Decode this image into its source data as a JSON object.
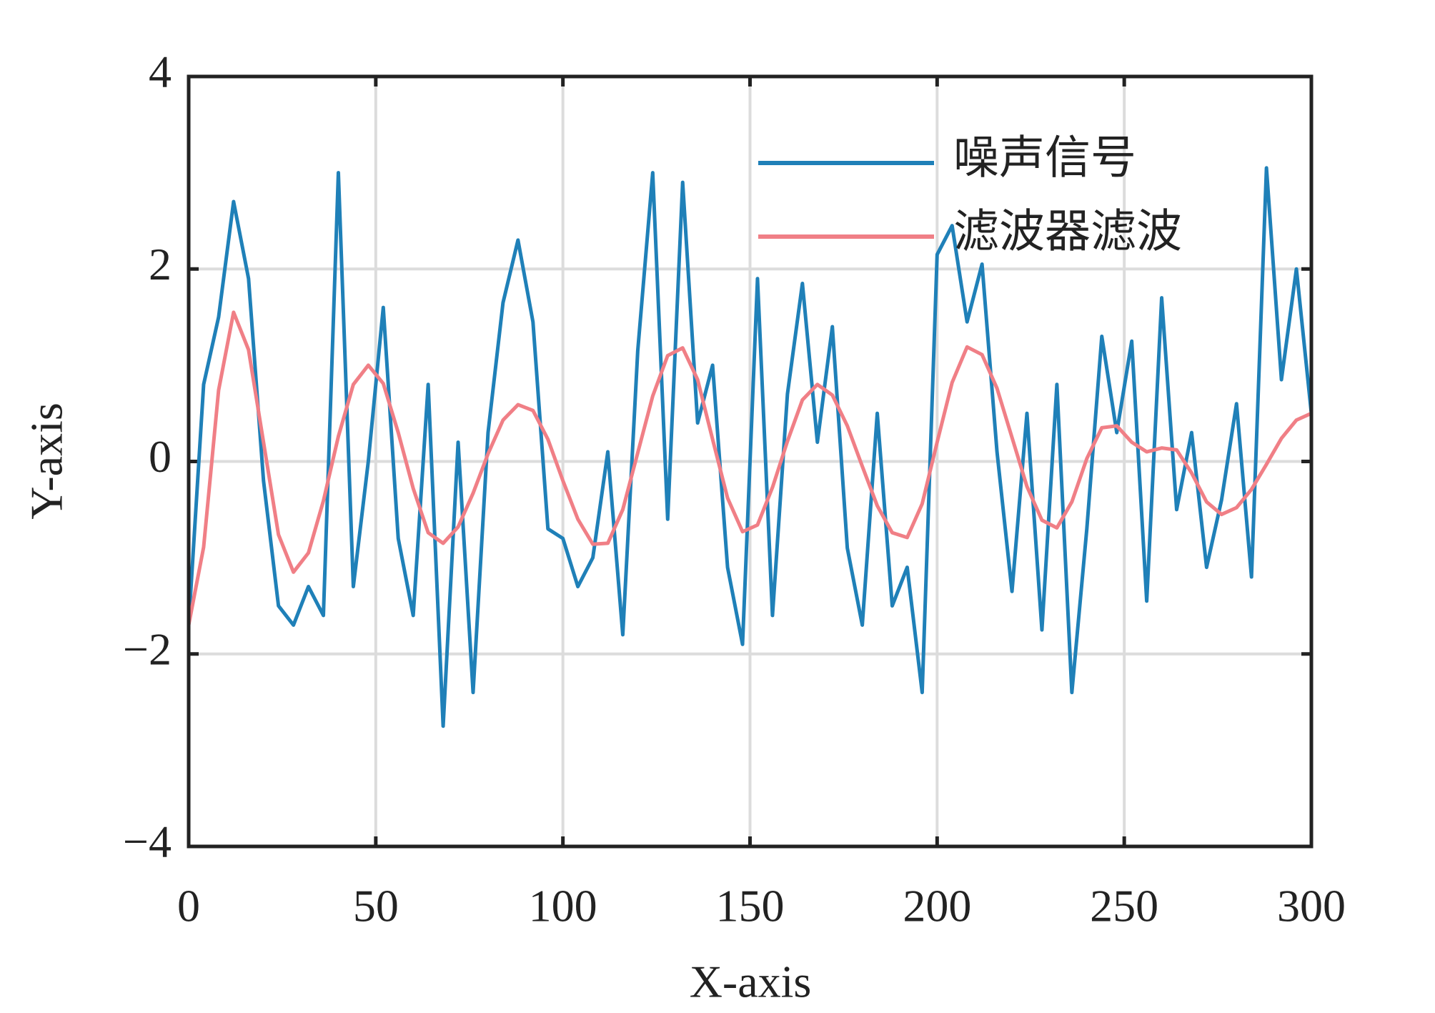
{
  "chart_data": {
    "type": "line",
    "xlabel": "X-axis",
    "ylabel": "Y-axis",
    "x": [
      0,
      4,
      8,
      12,
      16,
      20,
      24,
      28,
      32,
      36,
      40,
      44,
      48,
      52,
      56,
      60,
      64,
      68,
      72,
      76,
      80,
      84,
      88,
      92,
      96,
      100,
      104,
      108,
      112,
      116,
      120,
      124,
      128,
      132,
      136,
      140,
      144,
      148,
      152,
      156,
      160,
      164,
      168,
      172,
      176,
      180,
      184,
      188,
      192,
      196,
      200,
      204,
      208,
      212,
      216,
      220,
      224,
      228,
      232,
      236,
      240,
      244,
      248,
      252,
      256,
      260,
      264,
      268,
      272,
      276,
      280,
      284,
      288,
      292,
      296,
      300
    ],
    "series": [
      {
        "name": "噪声信号",
        "color": "#1f80b8",
        "values": [
          -1.7,
          0.8,
          1.5,
          2.7,
          1.9,
          -0.2,
          -1.5,
          -1.7,
          -1.3,
          -1.6,
          3.0,
          -1.3,
          0.0,
          1.6,
          -0.8,
          -1.6,
          0.8,
          -2.75,
          0.2,
          -2.4,
          0.3,
          1.65,
          2.3,
          1.45,
          -0.7,
          -0.8,
          -1.3,
          -1.0,
          0.1,
          -1.8,
          1.15,
          3.0,
          -0.6,
          2.9,
          0.4,
          1.0,
          -1.1,
          -1.9,
          1.9,
          -1.6,
          0.7,
          1.85,
          0.2,
          1.4,
          -0.9,
          -1.7,
          0.5,
          -1.5,
          -1.1,
          -2.4,
          2.15,
          2.45,
          1.45,
          2.05,
          0.1,
          -1.35,
          0.5,
          -1.75,
          0.8,
          -2.4,
          -0.7,
          1.3,
          0.3,
          1.25,
          -1.45,
          1.7,
          -0.5,
          0.3,
          -1.1,
          -0.4,
          0.6,
          -1.2,
          3.05,
          0.85,
          2.0,
          0.5
        ]
      },
      {
        "name": "滤波器滤波",
        "color": "#f07f86",
        "values": [
          -1.7,
          -0.89,
          0.74,
          1.55,
          1.16,
          0.2,
          -0.76,
          -1.15,
          -0.95,
          -0.41,
          0.26,
          0.8,
          1.0,
          0.81,
          0.3,
          -0.28,
          -0.74,
          -0.85,
          -0.68,
          -0.33,
          0.08,
          0.43,
          0.59,
          0.53,
          0.23,
          -0.2,
          -0.6,
          -0.86,
          -0.85,
          -0.5,
          0.09,
          0.68,
          1.1,
          1.18,
          0.85,
          0.23,
          -0.38,
          -0.73,
          -0.66,
          -0.27,
          0.21,
          0.64,
          0.8,
          0.69,
          0.37,
          -0.05,
          -0.46,
          -0.74,
          -0.79,
          -0.44,
          0.2,
          0.82,
          1.19,
          1.11,
          0.76,
          0.25,
          -0.26,
          -0.61,
          -0.69,
          -0.42,
          0.03,
          0.35,
          0.37,
          0.2,
          0.1,
          0.14,
          0.12,
          -0.12,
          -0.42,
          -0.55,
          -0.48,
          -0.29,
          -0.03,
          0.24,
          0.43,
          0.5
        ]
      }
    ],
    "xlim": [
      0,
      300
    ],
    "xticks": [
      0,
      50,
      100,
      150,
      200,
      250,
      300
    ],
    "ylim": [
      -4,
      4
    ],
    "yticks": [
      {
        "value": -4,
        "label": "−4"
      },
      {
        "value": -2,
        "label": "−2"
      },
      0,
      2,
      4
    ],
    "grid": true,
    "legend": "upper right"
  }
}
